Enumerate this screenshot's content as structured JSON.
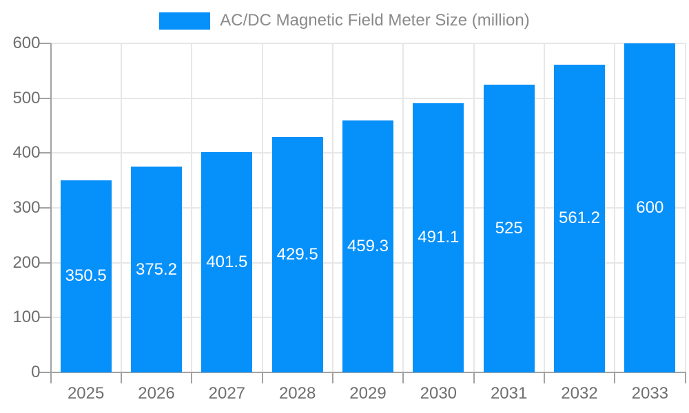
{
  "chart_data": {
    "type": "bar",
    "title": "AC/DC Magnetic Field Meter Size (million)",
    "legend_position": "top",
    "categories": [
      "2025",
      "2026",
      "2027",
      "2028",
      "2029",
      "2030",
      "2031",
      "2032",
      "2033"
    ],
    "series": [
      {
        "name": "AC/DC Magnetic Field Meter Size (million)",
        "values": [
          350.5,
          375.2,
          401.5,
          429.5,
          459.3,
          491.1,
          525,
          561.2,
          600
        ],
        "value_labels": [
          "350.5",
          "375.2",
          "401.5",
          "429.5",
          "459.3",
          "491.1",
          "525",
          "561.2",
          "600"
        ]
      }
    ],
    "xlabel": "",
    "ylabel": "",
    "ylim": [
      0,
      600
    ],
    "yticks": [
      0,
      100,
      200,
      300,
      400,
      500,
      600
    ],
    "ytick_labels": [
      "0",
      "100",
      "200",
      "300",
      "400",
      "500",
      "600"
    ],
    "grid": true,
    "value_labels_position": "center-inside",
    "colors": {
      "bar": "#0690fa",
      "gridline": "#e7e7e7",
      "axis": "#a2a2a2",
      "tick_label": "#6f6f6f",
      "legend_label": "#8a8a8a",
      "value_label": "#ffffff",
      "background": "#ffffff"
    }
  }
}
